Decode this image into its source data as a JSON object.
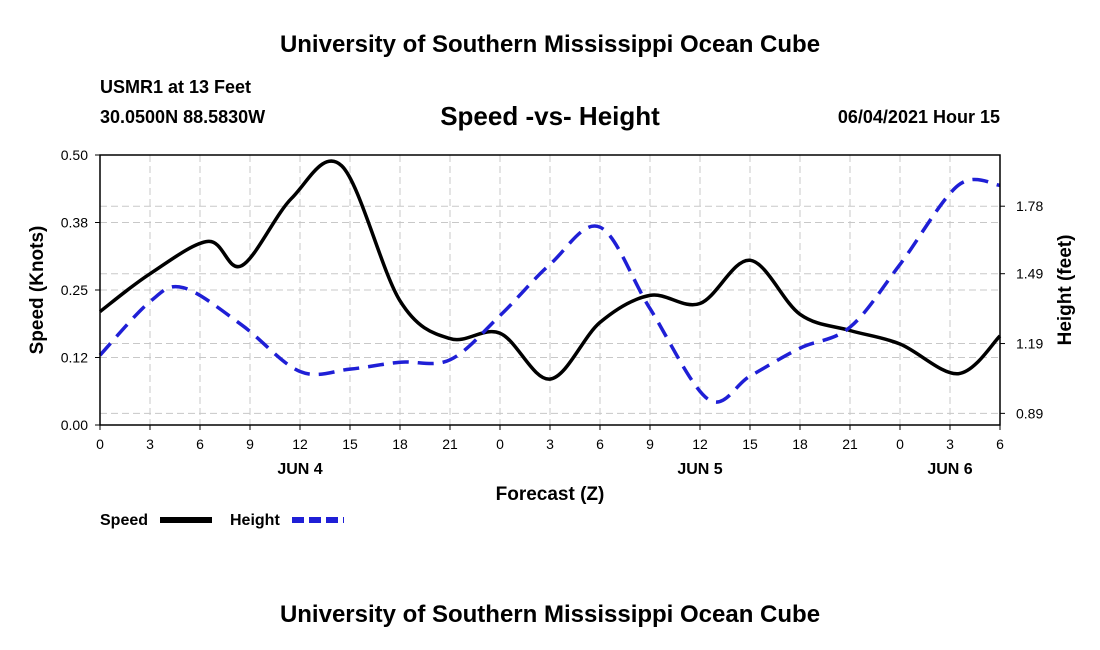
{
  "header": {
    "title": "University of Southern Mississippi Ocean Cube",
    "station": "USMR1 at 13 Feet",
    "coords": "30.0500N  88.5830W",
    "datetime": "06/04/2021 Hour 15"
  },
  "footer": {
    "title": "University of Southern Mississippi Ocean Cube"
  },
  "chart_data": {
    "type": "line",
    "title": "Speed -vs- Height",
    "xlabel": "Forecast (Z)",
    "ylabel": "Speed (Knots)",
    "y2label": "Height (feet)",
    "xlim": [
      0,
      54
    ],
    "ylim": [
      0,
      0.5
    ],
    "y2lim": [
      0.84,
      2.0
    ],
    "grid": true,
    "x_ticks": [
      0,
      3,
      6,
      9,
      12,
      15,
      18,
      21,
      24,
      27,
      30,
      33,
      36,
      39,
      42,
      45,
      48,
      51,
      54
    ],
    "x_tick_labels": [
      "0",
      "3",
      "6",
      "9",
      "12",
      "15",
      "18",
      "21",
      "0",
      "3",
      "6",
      "9",
      "12",
      "15",
      "18",
      "21",
      "0",
      "3",
      "6"
    ],
    "y_ticks": [
      0,
      0.125,
      0.25,
      0.375,
      0.5
    ],
    "y_tick_labels": [
      "0.00",
      "0.12",
      "0.25",
      "0.38",
      "0.50"
    ],
    "y2_ticks": [
      0.89,
      1.19,
      1.49,
      1.78
    ],
    "y2_tick_labels": [
      "0.89",
      "1.19",
      "1.49",
      "1.78"
    ],
    "date_labels": [
      {
        "x": 12,
        "label": "JUN 4"
      },
      {
        "x": 36,
        "label": "JUN 5"
      },
      {
        "x": 51,
        "label": "JUN 6"
      }
    ],
    "series": [
      {
        "name": "Speed",
        "axis": "left",
        "color": "#000000",
        "style": "solid",
        "x": [
          0,
          3,
          6.5,
          8.5,
          11.5,
          14.5,
          18,
          21,
          24,
          27,
          30,
          33,
          36,
          39,
          42,
          45,
          48,
          51.5,
          54
        ],
        "values": [
          0.21,
          0.28,
          0.34,
          0.295,
          0.42,
          0.48,
          0.23,
          0.16,
          0.17,
          0.085,
          0.19,
          0.24,
          0.225,
          0.305,
          0.205,
          0.175,
          0.15,
          0.095,
          0.165
        ]
      },
      {
        "name": "Height",
        "axis": "right",
        "color": "#1f1fd6",
        "style": "dashed",
        "x": [
          0,
          3,
          5,
          8.5,
          12,
          15,
          18,
          21,
          24,
          27,
          30,
          33,
          36.5,
          39,
          42,
          45,
          48,
          51.5,
          54
        ],
        "values": [
          1.14,
          1.37,
          1.43,
          1.27,
          1.07,
          1.08,
          1.11,
          1.12,
          1.31,
          1.53,
          1.69,
          1.34,
          0.95,
          1.05,
          1.17,
          1.26,
          1.53,
          1.87,
          1.87
        ]
      }
    ],
    "legend": {
      "position": "bottom-left",
      "items": [
        {
          "label": "Speed",
          "color": "#000000",
          "style": "solid"
        },
        {
          "label": "Height",
          "color": "#1f1fd6",
          "style": "dashed"
        }
      ]
    }
  }
}
